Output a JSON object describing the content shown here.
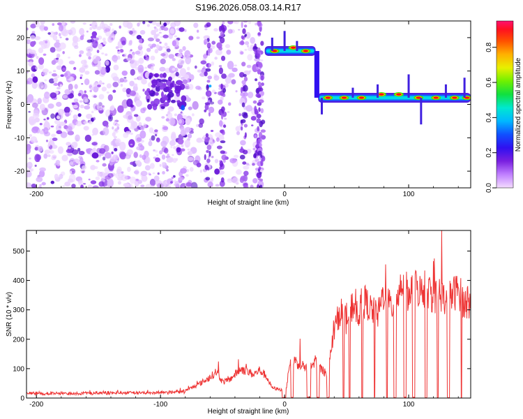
{
  "title": "S196.2026.058.03.14.R17",
  "chart_data": [
    {
      "type": "heatmap",
      "xlabel": "Height of straight line (km)",
      "ylabel": "Frequency (Hz)",
      "xlim": [
        -208,
        150
      ],
      "ylim": [
        -25,
        25
      ],
      "x_ticks": [
        -200,
        -100,
        0,
        100
      ],
      "y_ticks": [
        -20,
        -10,
        0,
        10,
        20
      ],
      "x_tick_labels": [
        "-200",
        "-100",
        "0",
        "100"
      ],
      "y_tick_labels": [
        "-20",
        "-10",
        "0",
        "10",
        "20"
      ],
      "colorbar": {
        "label": "Normalized spectral amplitude",
        "range": [
          0,
          0.95
        ],
        "ticks": [
          0.0,
          0.2,
          0.4,
          0.6,
          0.8
        ],
        "tick_labels": [
          "0.0",
          "0.2",
          "0.4",
          "0.6",
          "0.8"
        ]
      },
      "series": [
        {
          "x_start": -16,
          "x_end": 25,
          "y": 16,
          "peak_amplitude": 0.9
        },
        {
          "x_start": 27,
          "x_end": 150,
          "y": 2,
          "peak_amplitude": 0.9
        }
      ]
    },
    {
      "type": "line",
      "xlabel": "Height of straight line (km)",
      "ylabel": "SNR (10 * v/v)",
      "xlim": [
        -208,
        150
      ],
      "ylim": [
        0,
        570
      ],
      "x_ticks": [
        -200,
        -100,
        0,
        100
      ],
      "y_ticks": [
        0,
        100,
        200,
        300,
        400,
        500
      ],
      "x_tick_labels": [
        "-200",
        "-100",
        "0",
        "100"
      ],
      "y_tick_labels": [
        "0",
        "100",
        "200",
        "300",
        "400",
        "500"
      ],
      "line_color": "#ee3333",
      "x": [
        -208,
        -180,
        -150,
        -120,
        -100,
        -80,
        -70,
        -60,
        -55,
        -50,
        -45,
        -40,
        -35,
        -30,
        -25,
        -20,
        -15,
        -10,
        -5,
        0,
        2,
        5,
        10,
        15,
        20,
        25,
        30,
        35,
        40,
        45,
        50,
        55,
        60,
        65,
        70,
        75,
        80,
        85,
        90,
        95,
        100,
        105,
        110,
        115,
        120,
        125,
        130,
        135,
        140,
        145,
        150
      ],
      "values": [
        15,
        15,
        17,
        18,
        20,
        25,
        45,
        70,
        90,
        55,
        60,
        80,
        100,
        90,
        80,
        95,
        75,
        35,
        30,
        25,
        45,
        140,
        120,
        110,
        95,
        130,
        95,
        85,
        230,
        300,
        260,
        320,
        290,
        330,
        300,
        280,
        360,
        310,
        330,
        400,
        350,
        380,
        360,
        370,
        340,
        360,
        330,
        350,
        370,
        320,
        330
      ]
    }
  ]
}
